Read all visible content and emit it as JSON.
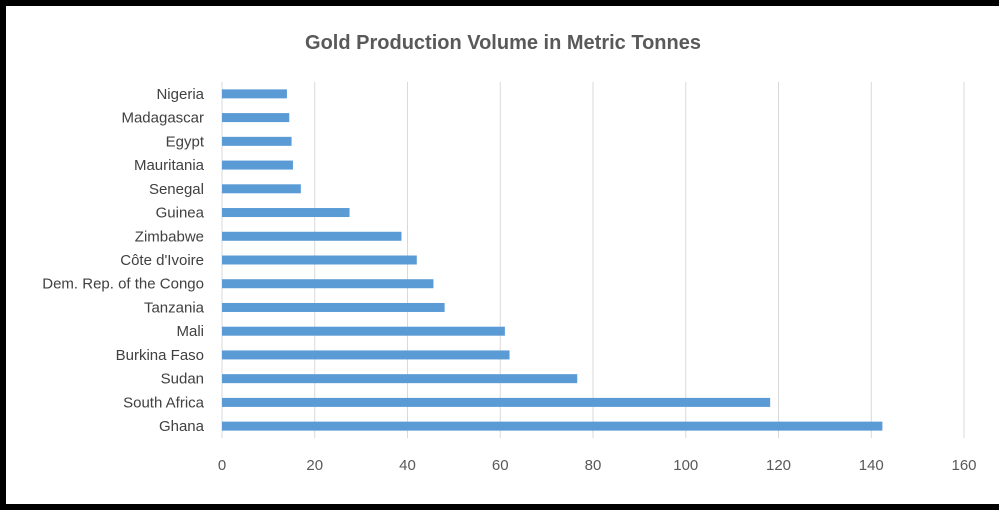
{
  "chart_data": {
    "type": "bar",
    "orientation": "horizontal",
    "title": "Gold Production Volume in Metric  Tonnes",
    "xlabel": "",
    "ylabel": "",
    "categories": [
      "Nigeria",
      "Madagascar",
      "Egypt",
      "Mauritania",
      "Senegal",
      "Guinea",
      "Zimbabwe",
      "Côte d'Ivoire",
      "Dem. Rep. of the Congo",
      "Tanzania",
      "Mali",
      "Burkina Faso",
      "Sudan",
      "South Africa",
      "Ghana"
    ],
    "values": [
      14,
      14.5,
      15,
      15.3,
      17,
      27.5,
      38.7,
      42,
      45.6,
      48,
      61,
      62,
      76.6,
      118.2,
      142.4
    ],
    "xlim": [
      0,
      160
    ],
    "ticks": [
      "0",
      "20",
      "40",
      "60",
      "80",
      "100",
      "120",
      "140",
      "160"
    ],
    "tick_values": [
      0,
      20,
      40,
      60,
      80,
      100,
      120,
      140,
      160
    ],
    "grid": true,
    "legend": "none",
    "colors": {
      "bar": "#5b9bd5",
      "grid": "#d9d9d9",
      "text": "#595959",
      "frame": "#000000"
    }
  }
}
